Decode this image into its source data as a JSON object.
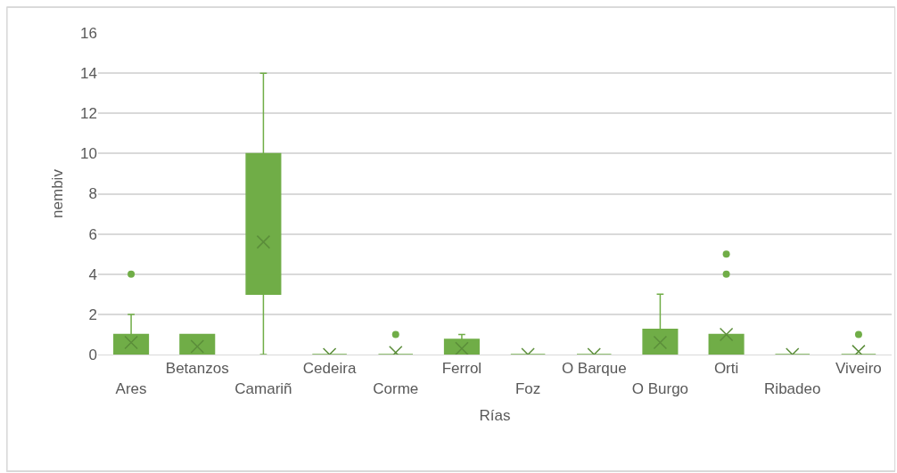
{
  "chart_data": {
    "type": "box",
    "xlabel": "Rías",
    "ylabel": "nembiv",
    "categories": [
      "Ares",
      "Betanzos",
      "Camariñ",
      "Cedeira",
      "Corme",
      "Ferrol",
      "Foz",
      "O Barque",
      "O Burgo",
      "Orti",
      "Ribadeo",
      "Viveiro"
    ],
    "ylim": [
      0,
      16
    ],
    "yticks": [
      0,
      2,
      4,
      6,
      8,
      10,
      12,
      14,
      16
    ],
    "grid": "y",
    "series": [
      {
        "color": "#70ad47",
        "boxes": [
          {
            "q1": 0,
            "median": 0,
            "q3": 1,
            "high": 2,
            "mean": 0.6,
            "outliers": [
              4
            ]
          },
          {
            "q1": 0,
            "median": 0,
            "q3": 1,
            "high": 1,
            "mean": 0.4
          },
          {
            "low": 0,
            "q1": 3,
            "median": 4,
            "q3": 10,
            "high": 14,
            "mean": 5.6
          },
          {
            "q1": 0,
            "median": 0,
            "q3": 0,
            "high": 0,
            "mean": 0
          },
          {
            "q1": 0,
            "median": 0,
            "q3": 0,
            "high": 0,
            "mean": 0.1,
            "outliers": [
              1
            ]
          },
          {
            "q1": 0,
            "median": 0,
            "q3": 0.75,
            "high": 1,
            "mean": 0.3
          },
          {
            "q1": 0,
            "median": 0,
            "q3": 0,
            "high": 0,
            "mean": 0
          },
          {
            "q1": 0,
            "median": 0,
            "q3": 0,
            "high": 0,
            "mean": 0
          },
          {
            "q1": 0,
            "median": 0,
            "q3": 1.25,
            "high": 3,
            "mean": 0.6
          },
          {
            "q1": 0,
            "median": 0,
            "q3": 1,
            "high": 1,
            "mean": 1,
            "outliers": [
              4,
              5
            ]
          },
          {
            "q1": 0,
            "median": 0,
            "q3": 0,
            "high": 0,
            "mean": 0
          },
          {
            "q1": 0,
            "median": 0,
            "q3": 0,
            "high": 0,
            "mean": 0.15,
            "outliers": [
              1
            ]
          }
        ]
      }
    ]
  }
}
